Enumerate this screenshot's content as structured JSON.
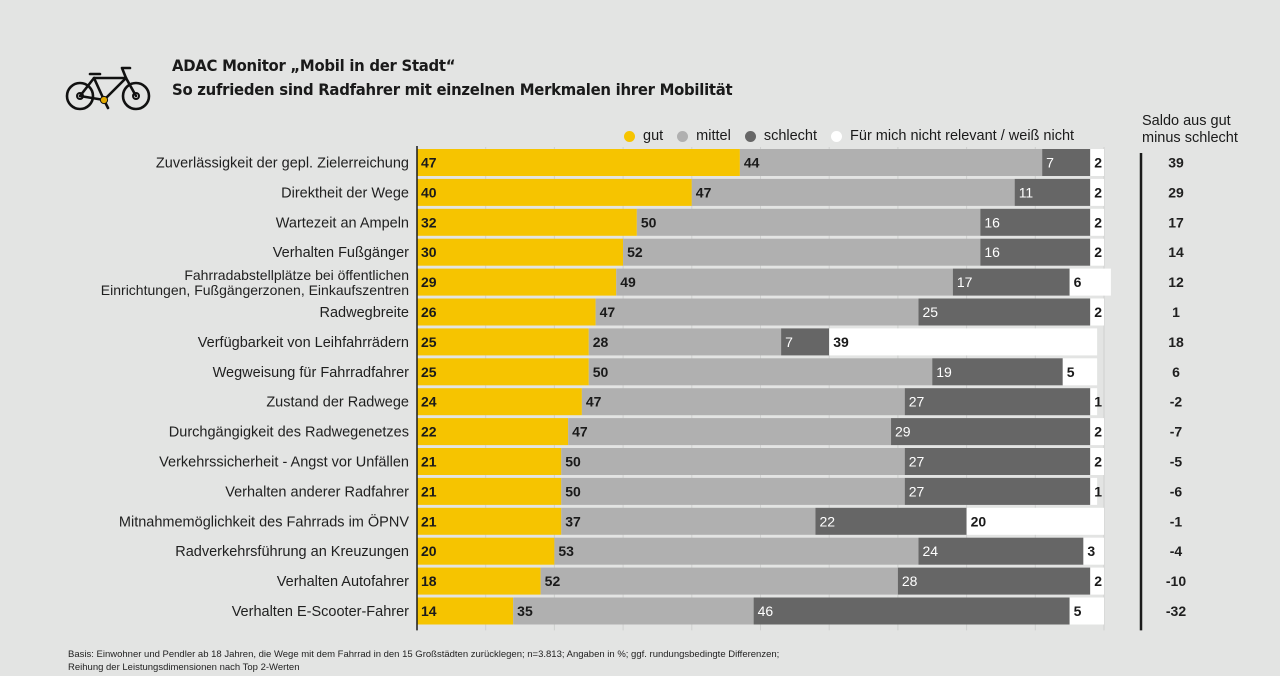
{
  "header": {
    "title": "ADAC Monitor „Mobil in der Stadt“",
    "subtitle": "So zufrieden sind Radfahrer mit einzelnen Merkmalen ihrer Mobilität",
    "icon": "bicycle-icon"
  },
  "legend": [
    {
      "label": "gut",
      "color": "#f6c400"
    },
    {
      "label": "mittel",
      "color": "#b0b0b0"
    },
    {
      "label": "schlecht",
      "color": "#666666"
    },
    {
      "label": "Für mich nicht relevant / weiß nicht",
      "color": "#ffffff"
    }
  ],
  "saldo_header": [
    "Saldo aus gut",
    "minus schlecht"
  ],
  "footnote": [
    "Basis: Einwohner und Pendler ab 18 Jahren, die Wege mit dem Fahrrad in den 15 Großstädten zurücklegen; n=3.813; Angaben in %; ggf. rundungsbedingte Differenzen;",
    "Reihung der Leistungsdimensionen nach Top 2-Werten"
  ],
  "chart_data": {
    "type": "bar",
    "orientation": "horizontal",
    "stacked": true,
    "title": "So zufrieden sind Radfahrer mit einzelnen Merkmalen ihrer Mobilität",
    "xlabel": "",
    "ylabel": "",
    "xlim": [
      0,
      100
    ],
    "grid": true,
    "legend_position": "top-right",
    "categories": [
      [
        "Zuverlässigkeit der gepl. Zielerreichung"
      ],
      [
        "Direktheit der Wege"
      ],
      [
        "Wartezeit an Ampeln"
      ],
      [
        "Verhalten Fußgänger"
      ],
      [
        "Fahrradabstellplätze bei öffentlichen",
        "Einrichtungen, Fußgängerzonen, Einkaufszentren"
      ],
      [
        "Radwegbreite"
      ],
      [
        "Verfügbarkeit von Leihfahrrädern"
      ],
      [
        "Wegweisung für Fahrradfahrer"
      ],
      [
        "Zustand der Radwege"
      ],
      [
        "Durchgängigkeit des Radwegenetzes"
      ],
      [
        "Verkehrssicherheit - Angst vor Unfällen"
      ],
      [
        "Verhalten anderer Radfahrer"
      ],
      [
        "Mitnahmemöglichkeit des Fahrrads im ÖPNV"
      ],
      [
        "Radverkehrsführung an Kreuzungen"
      ],
      [
        "Verhalten Autofahrer"
      ],
      [
        "Verhalten E-Scooter-Fahrer"
      ]
    ],
    "series": [
      {
        "name": "gut",
        "color": "#f6c400",
        "label_color": "#1a1a1a",
        "values": [
          47,
          40,
          32,
          30,
          29,
          26,
          25,
          25,
          24,
          22,
          21,
          21,
          21,
          20,
          18,
          14
        ]
      },
      {
        "name": "mittel",
        "color": "#b0b0b0",
        "label_color": "#1a1a1a",
        "values": [
          44,
          47,
          50,
          52,
          49,
          47,
          28,
          50,
          47,
          47,
          50,
          50,
          37,
          53,
          52,
          35
        ]
      },
      {
        "name": "schlecht",
        "color": "#666666",
        "label_color": "#ffffff",
        "values": [
          7,
          11,
          16,
          16,
          17,
          25,
          7,
          19,
          27,
          29,
          27,
          27,
          22,
          24,
          28,
          46
        ]
      },
      {
        "name": "Für mich nicht relevant / weiß nicht",
        "color": "#ffffff",
        "label_color": "#1a1a1a",
        "values": [
          2,
          2,
          2,
          2,
          6,
          2,
          39,
          5,
          1,
          2,
          2,
          1,
          20,
          3,
          2,
          5
        ]
      }
    ],
    "saldo": {
      "label": "Saldo aus gut minus schlecht",
      "values": [
        39,
        29,
        17,
        14,
        12,
        1,
        18,
        6,
        -2,
        -7,
        -5,
        -6,
        -1,
        -4,
        -10,
        -32
      ]
    }
  }
}
